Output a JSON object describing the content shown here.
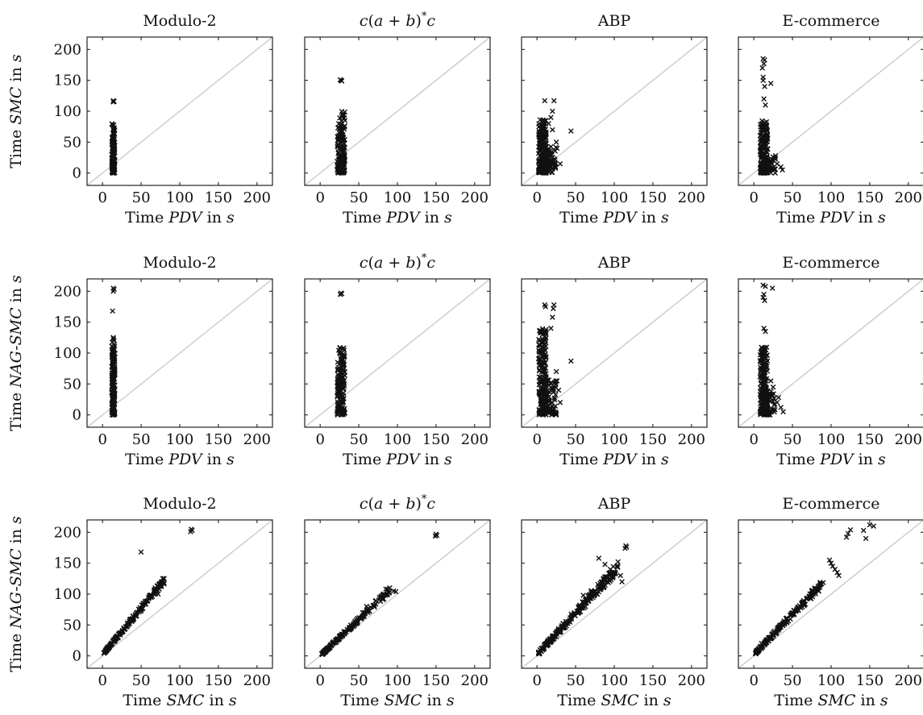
{
  "figure": {
    "axis_label_prefix": "Time",
    "axis_label_suffix": "in s",
    "rows": [
      {
        "x_metric": "PDV",
        "y_metric": "SMC"
      },
      {
        "x_metric": "PDV",
        "y_metric": "NAG-SMC"
      },
      {
        "x_metric": "SMC",
        "y_metric": "NAG-SMC"
      }
    ],
    "panel_titles": [
      "Modulo-2",
      "c(a + b)*c",
      "ABP",
      "E-commerce"
    ],
    "diagonal_color": "#c8c8c8",
    "marker_color": "#111111",
    "marker": "cross"
  },
  "chart_data": [
    {
      "type": "scatter",
      "row": 0,
      "col": 0,
      "title": "Modulo-2",
      "xlabel": "Time PDV in s",
      "ylabel": "Time SMC in s",
      "xlim": [
        -20,
        220
      ],
      "ylim": [
        -20,
        220
      ],
      "xticks": [
        0,
        50,
        100,
        150,
        200
      ],
      "yticks": [
        0,
        50,
        100,
        150,
        200
      ],
      "grid": false,
      "clusters": [
        {
          "x": [
            12,
            16
          ],
          "y": [
            0,
            55
          ],
          "n": 140
        },
        {
          "x": [
            12,
            16
          ],
          "y": [
            55,
            80
          ],
          "n": 18
        }
      ],
      "points": [
        [
          14,
          117
        ],
        [
          15,
          116
        ],
        [
          14,
          115
        ],
        [
          13,
          78
        ],
        [
          14,
          72
        ]
      ]
    },
    {
      "type": "scatter",
      "row": 0,
      "col": 1,
      "title": "c(a + b)*c",
      "xlabel": "Time PDV in s",
      "ylabel": "",
      "xlim": [
        -20,
        220
      ],
      "ylim": [
        -20,
        220
      ],
      "xticks": [
        0,
        50,
        100,
        150,
        200
      ],
      "yticks": [
        0,
        50,
        100,
        150,
        200
      ],
      "grid": false,
      "clusters": [
        {
          "x": [
            22,
            32
          ],
          "y": [
            0,
            75
          ],
          "n": 130
        },
        {
          "x": [
            24,
            32
          ],
          "y": [
            75,
            100
          ],
          "n": 14
        }
      ],
      "points": [
        [
          27,
          150
        ],
        [
          28,
          149
        ],
        [
          26,
          151
        ],
        [
          29,
          95
        ],
        [
          32,
          85
        ]
      ]
    },
    {
      "type": "scatter",
      "row": 0,
      "col": 2,
      "title": "ABP",
      "xlabel": "Time PDV in s",
      "ylabel": "",
      "xlim": [
        -20,
        220
      ],
      "ylim": [
        -20,
        220
      ],
      "xticks": [
        0,
        50,
        100,
        150,
        200
      ],
      "yticks": [
        0,
        50,
        100,
        150,
        200
      ],
      "grid": false,
      "clusters": [
        {
          "x": [
            2,
            12
          ],
          "y": [
            0,
            90
          ],
          "n": 170
        },
        {
          "x": [
            8,
            25
          ],
          "y": [
            0,
            45
          ],
          "n": 70
        }
      ],
      "points": [
        [
          10,
          117
        ],
        [
          22,
          117
        ],
        [
          20,
          100
        ],
        [
          18,
          90
        ],
        [
          44,
          68
        ],
        [
          25,
          50
        ],
        [
          26,
          40
        ],
        [
          30,
          15
        ],
        [
          15,
          80
        ],
        [
          20,
          70
        ]
      ]
    },
    {
      "type": "scatter",
      "row": 0,
      "col": 3,
      "title": "E-commerce",
      "xlabel": "Time PDV in s",
      "ylabel": "",
      "xlim": [
        -20,
        220
      ],
      "ylim": [
        -20,
        220
      ],
      "xticks": [
        0,
        50,
        100,
        150,
        200
      ],
      "yticks": [
        0,
        50,
        100,
        150,
        200
      ],
      "grid": false,
      "clusters": [
        {
          "x": [
            8,
            18
          ],
          "y": [
            0,
            85
          ],
          "n": 170
        },
        {
          "x": [
            10,
            28
          ],
          "y": [
            0,
            30
          ],
          "n": 60
        }
      ],
      "points": [
        [
          12,
          185
        ],
        [
          14,
          183
        ],
        [
          13,
          177
        ],
        [
          11,
          170
        ],
        [
          12,
          155
        ],
        [
          12,
          150
        ],
        [
          14,
          140
        ],
        [
          22,
          145
        ],
        [
          13,
          120
        ],
        [
          15,
          110
        ],
        [
          35,
          10
        ],
        [
          37,
          5
        ],
        [
          30,
          15
        ],
        [
          28,
          28
        ]
      ]
    },
    {
      "type": "scatter",
      "row": 1,
      "col": 0,
      "title": "Modulo-2",
      "xlabel": "Time PDV in s",
      "ylabel": "Time NAG-SMC in s",
      "xlim": [
        -20,
        220
      ],
      "ylim": [
        -20,
        220
      ],
      "xticks": [
        0,
        50,
        100,
        150,
        200
      ],
      "yticks": [
        0,
        50,
        100,
        150,
        200
      ],
      "grid": false,
      "clusters": [
        {
          "x": [
            12,
            16
          ],
          "y": [
            0,
            95
          ],
          "n": 170
        },
        {
          "x": [
            12,
            16
          ],
          "y": [
            95,
            125
          ],
          "n": 20
        }
      ],
      "points": [
        [
          14,
          205
        ],
        [
          15,
          203
        ],
        [
          14,
          200
        ],
        [
          13,
          168
        ],
        [
          14,
          125
        ],
        [
          15,
          120
        ]
      ]
    },
    {
      "type": "scatter",
      "row": 1,
      "col": 1,
      "title": "c(a + b)*c",
      "xlabel": "Time PDV in s",
      "ylabel": "",
      "xlim": [
        -20,
        220
      ],
      "ylim": [
        -20,
        220
      ],
      "xticks": [
        0,
        50,
        100,
        150,
        200
      ],
      "yticks": [
        0,
        50,
        100,
        150,
        200
      ],
      "grid": false,
      "clusters": [
        {
          "x": [
            22,
            32
          ],
          "y": [
            0,
            90
          ],
          "n": 140
        },
        {
          "x": [
            24,
            32
          ],
          "y": [
            90,
            110
          ],
          "n": 14
        }
      ],
      "points": [
        [
          27,
          197
        ],
        [
          28,
          196
        ],
        [
          26,
          195
        ],
        [
          30,
          108
        ],
        [
          31,
          105
        ]
      ]
    },
    {
      "type": "scatter",
      "row": 1,
      "col": 2,
      "title": "ABP",
      "xlabel": "Time PDV in s",
      "ylabel": "",
      "xlim": [
        -20,
        220
      ],
      "ylim": [
        -20,
        220
      ],
      "xticks": [
        0,
        50,
        100,
        150,
        200
      ],
      "yticks": [
        0,
        50,
        100,
        150,
        200
      ],
      "grid": false,
      "clusters": [
        {
          "x": [
            2,
            12
          ],
          "y": [
            0,
            140
          ],
          "n": 190
        },
        {
          "x": [
            8,
            25
          ],
          "y": [
            0,
            60
          ],
          "n": 70
        }
      ],
      "points": [
        [
          10,
          178
        ],
        [
          22,
          178
        ],
        [
          11,
          175
        ],
        [
          21,
          172
        ],
        [
          20,
          158
        ],
        [
          18,
          140
        ],
        [
          44,
          87
        ],
        [
          25,
          70
        ],
        [
          26,
          55
        ],
        [
          28,
          40
        ],
        [
          30,
          20
        ]
      ]
    },
    {
      "type": "scatter",
      "row": 1,
      "col": 3,
      "title": "E-commerce",
      "xlabel": "Time PDV in s",
      "ylabel": "",
      "xlim": [
        -20,
        220
      ],
      "ylim": [
        -20,
        220
      ],
      "xticks": [
        0,
        50,
        100,
        150,
        200
      ],
      "yticks": [
        0,
        50,
        100,
        150,
        200
      ],
      "grid": false,
      "clusters": [
        {
          "x": [
            8,
            18
          ],
          "y": [
            0,
            110
          ],
          "n": 180
        },
        {
          "x": [
            10,
            28
          ],
          "y": [
            0,
            40
          ],
          "n": 60
        }
      ],
      "points": [
        [
          12,
          210
        ],
        [
          15,
          208
        ],
        [
          24,
          205
        ],
        [
          13,
          195
        ],
        [
          12,
          190
        ],
        [
          14,
          185
        ],
        [
          13,
          140
        ],
        [
          15,
          135
        ],
        [
          22,
          55
        ],
        [
          25,
          45
        ],
        [
          35,
          12
        ],
        [
          38,
          5
        ],
        [
          30,
          20
        ],
        [
          32,
          28
        ]
      ]
    },
    {
      "type": "scatter",
      "row": 2,
      "col": 0,
      "title": "Modulo-2",
      "xlabel": "Time SMC in s",
      "ylabel": "Time NAG-SMC in s",
      "xlim": [
        -20,
        220
      ],
      "ylim": [
        -20,
        220
      ],
      "xticks": [
        0,
        50,
        100,
        150,
        200
      ],
      "yticks": [
        0,
        50,
        100,
        150,
        200
      ],
      "grid": false,
      "trend": {
        "x": [
          2,
          80
        ],
        "slope": 1.5,
        "offset": 2,
        "spread": 4,
        "n": 170
      },
      "points": [
        [
          115,
          205
        ],
        [
          116,
          203
        ],
        [
          114,
          201
        ],
        [
          50,
          168
        ],
        [
          68,
          110
        ],
        [
          70,
          105
        ],
        [
          72,
          100
        ],
        [
          78,
          125
        ],
        [
          77,
          120
        ],
        [
          60,
          95
        ]
      ]
    },
    {
      "type": "scatter",
      "row": 2,
      "col": 1,
      "title": "c(a + b)*c",
      "xlabel": "Time SMC in s",
      "ylabel": "",
      "xlim": [
        -20,
        220
      ],
      "ylim": [
        -20,
        220
      ],
      "xticks": [
        0,
        50,
        100,
        150,
        200
      ],
      "yticks": [
        0,
        50,
        100,
        150,
        200
      ],
      "grid": false,
      "trend": {
        "x": [
          2,
          90
        ],
        "slope": 1.18,
        "offset": 0,
        "spread": 4,
        "n": 170
      },
      "points": [
        [
          150,
          197
        ],
        [
          151,
          195
        ],
        [
          149,
          194
        ],
        [
          95,
          105
        ],
        [
          98,
          104
        ],
        [
          90,
          110
        ],
        [
          85,
          108
        ],
        [
          60,
          80
        ],
        [
          55,
          70
        ]
      ]
    },
    {
      "type": "scatter",
      "row": 2,
      "col": 2,
      "title": "ABP",
      "xlabel": "Time SMC in s",
      "ylabel": "",
      "xlim": [
        -20,
        220
      ],
      "ylim": [
        -20,
        220
      ],
      "xticks": [
        0,
        50,
        100,
        150,
        200
      ],
      "yticks": [
        0,
        50,
        100,
        150,
        200
      ],
      "grid": false,
      "trend": {
        "x": [
          2,
          105
        ],
        "slope": 1.35,
        "offset": 2,
        "spread": 7,
        "n": 230
      },
      "points": [
        [
          115,
          178
        ],
        [
          116,
          176
        ],
        [
          114,
          174
        ],
        [
          80,
          158
        ],
        [
          88,
          148
        ],
        [
          95,
          140
        ],
        [
          100,
          135
        ],
        [
          108,
          130
        ],
        [
          110,
          120
        ],
        [
          70,
          105
        ],
        [
          60,
          98
        ]
      ]
    },
    {
      "type": "scatter",
      "row": 2,
      "col": 3,
      "title": "E-commerce",
      "xlabel": "Time SMC in s",
      "ylabel": "",
      "xlim": [
        -20,
        220
      ],
      "ylim": [
        -20,
        220
      ],
      "xticks": [
        0,
        50,
        100,
        150,
        200
      ],
      "yticks": [
        0,
        50,
        100,
        150,
        200
      ],
      "grid": false,
      "trend": {
        "x": [
          2,
          90
        ],
        "slope": 1.3,
        "offset": 2,
        "spread": 5,
        "n": 190
      },
      "points": [
        [
          150,
          212
        ],
        [
          155,
          210
        ],
        [
          142,
          203
        ],
        [
          125,
          204
        ],
        [
          122,
          198
        ],
        [
          120,
          192
        ],
        [
          145,
          190
        ],
        [
          98,
          155
        ],
        [
          100,
          150
        ],
        [
          102,
          145
        ],
        [
          105,
          140
        ],
        [
          108,
          135
        ],
        [
          110,
          130
        ],
        [
          10,
          20
        ]
      ]
    }
  ]
}
